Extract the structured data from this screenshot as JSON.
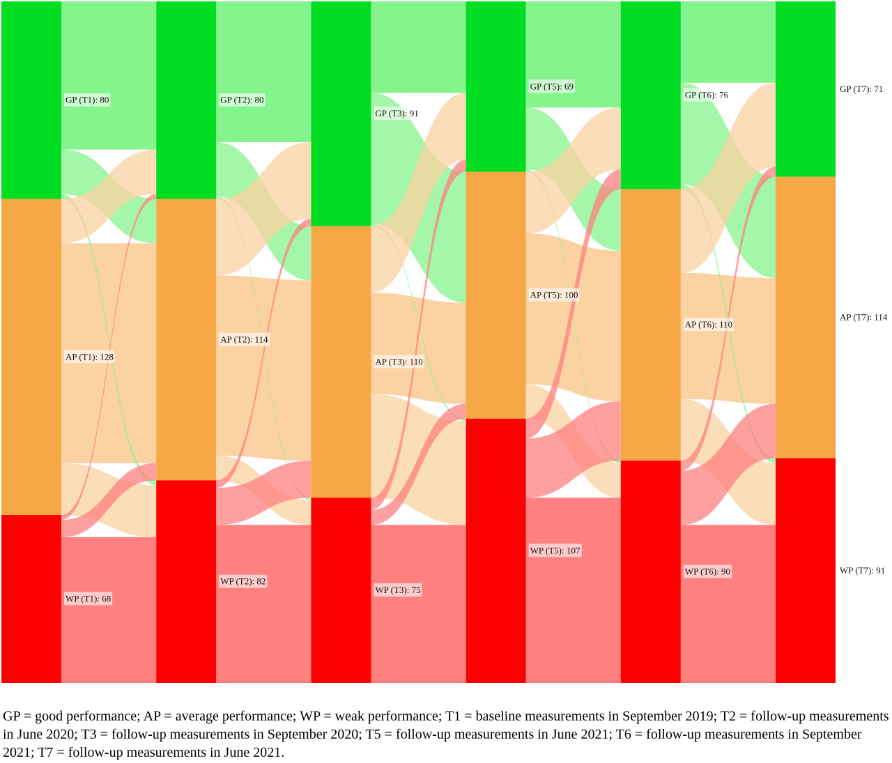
{
  "chart_data": {
    "type": "sankey",
    "stages": [
      "T1",
      "T2",
      "T3",
      "T5",
      "T6",
      "T7"
    ],
    "categories": [
      "GP",
      "AP",
      "WP"
    ],
    "colors": {
      "GP": "#00dd22",
      "AP": "#f7a846",
      "WP": "#fe0000",
      "GP_link": "#86f48c",
      "AP_link": "#fbd2a2",
      "WP_link": "#ff8080"
    },
    "nodes": [
      {
        "id": "GP_T1",
        "label": "GP (T1): 80",
        "value": 80
      },
      {
        "id": "AP_T1",
        "label": "AP (T1): 128",
        "value": 128
      },
      {
        "id": "WP_T1",
        "label": "WP (T1): 68",
        "value": 68
      },
      {
        "id": "GP_T2",
        "label": "GP (T2): 80",
        "value": 80
      },
      {
        "id": "AP_T2",
        "label": "AP (T2): 114",
        "value": 114
      },
      {
        "id": "WP_T2",
        "label": "WP (T2): 82",
        "value": 82
      },
      {
        "id": "GP_T3",
        "label": "GP (T3): 91",
        "value": 91
      },
      {
        "id": "AP_T3",
        "label": "AP (T3): 110",
        "value": 110
      },
      {
        "id": "WP_T3",
        "label": "WP (T3): 75",
        "value": 75
      },
      {
        "id": "GP_T5",
        "label": "GP (T5): 69",
        "value": 69
      },
      {
        "id": "AP_T5",
        "label": "AP (T5): 100",
        "value": 100
      },
      {
        "id": "WP_T5",
        "label": "WP (T5): 107",
        "value": 107
      },
      {
        "id": "GP_T6",
        "label": "GP (T6): 76",
        "value": 76
      },
      {
        "id": "AP_T6",
        "label": "AP (T6): 110",
        "value": 110
      },
      {
        "id": "WP_T6",
        "label": "WP (T6): 90",
        "value": 90
      },
      {
        "id": "GP_T7",
        "label": "GP (T7): 71",
        "value": 71
      },
      {
        "id": "AP_T7",
        "label": "AP (T7): 114",
        "value": 114
      },
      {
        "id": "WP_T7",
        "label": "WP (T7): 91",
        "value": 91
      }
    ],
    "flows": [
      [
        [
          60,
          18,
          2
        ],
        [
          18,
          89,
          21
        ],
        [
          2,
          7,
          59
        ]
      ],
      [
        [
          57,
          22,
          1
        ],
        [
          31,
          73,
          10
        ],
        [
          3,
          15,
          64
        ]
      ],
      [
        [
          37,
          53,
          1
        ],
        [
          27,
          41,
          42
        ],
        [
          5,
          6,
          64
        ]
      ],
      [
        [
          43,
          25,
          1
        ],
        [
          25,
          61,
          14
        ],
        [
          8,
          24,
          75
        ]
      ],
      [
        [
          33,
          41,
          2
        ],
        [
          34,
          51,
          25
        ],
        [
          4,
          22,
          64
        ]
      ]
    ]
  },
  "caption": "GP = good performance; AP = average performance; WP = weak performance; T1 = baseline measurements in September 2019; T2 = follow-up measurements in June 2020; T3 = follow-up measurements in September 2020; T5 = follow-up measurements in June 2021; T6 = follow-up measurements in September 2021; T7 = follow-up measurements in June 2021."
}
